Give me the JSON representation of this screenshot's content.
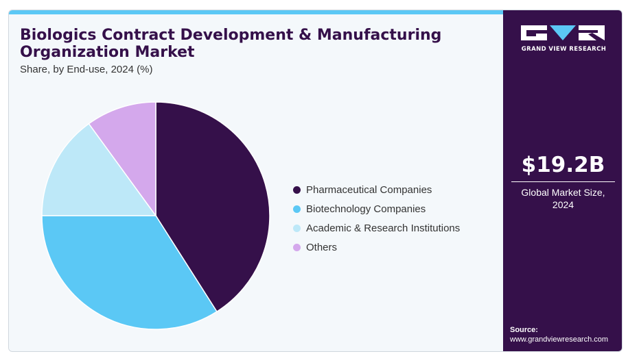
{
  "title": "Biologics Contract Development & Manufacturing Organization Market",
  "subtitle": "Share, by End-use, 2024 (%)",
  "chart_data": {
    "type": "pie",
    "title": "Biologics Contract Development & Manufacturing Organization Market",
    "subtitle": "Share, by End-use, 2024 (%)",
    "categories": [
      "Pharmaceutical Companies",
      "Biotechnology Companies",
      "Academic & Research Institutions",
      "Others"
    ],
    "values": [
      41,
      34,
      15,
      10
    ],
    "colors": [
      "#35104a",
      "#5bc8f5",
      "#bde8f8",
      "#d4a8ec"
    ],
    "legend_position": "right"
  },
  "brand": {
    "name": "GRAND VIEW RESEARCH",
    "colors": {
      "panel": "#35104a",
      "accent": "#5bc8f5"
    }
  },
  "market": {
    "value": "$19.2B",
    "label_line1": "Global Market Size,",
    "label_line2": "2024"
  },
  "source": {
    "label": "Source:",
    "url": "www.grandviewresearch.com"
  }
}
